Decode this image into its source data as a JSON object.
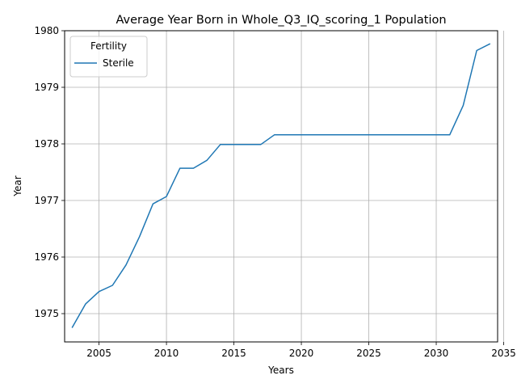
{
  "chart_data": {
    "type": "line",
    "title": "Average Year Born in Whole_Q3_IQ_scoring_1 Population",
    "xlabel": "Years",
    "ylabel": "Year",
    "xlim": [
      2002.45,
      2034.55
    ],
    "ylim": [
      1974.5,
      1980
    ],
    "xticks": [
      2005,
      2010,
      2015,
      2020,
      2025,
      2030,
      2035
    ],
    "yticks": [
      1975,
      1976,
      1977,
      1978,
      1979,
      1980
    ],
    "grid": true,
    "legend": {
      "title": "Fertility",
      "placement": "top-left"
    },
    "series": [
      {
        "name": "Sterile",
        "color": "#1f77b4",
        "x": [
          2003,
          2004,
          2005,
          2006,
          2007,
          2008,
          2009,
          2010,
          2011,
          2012,
          2013,
          2014,
          2015,
          2016,
          2017,
          2018,
          2019,
          2020,
          2021,
          2022,
          2023,
          2024,
          2025,
          2026,
          2027,
          2028,
          2029,
          2030,
          2031,
          2032,
          2033,
          2034
        ],
        "y": [
          1974.75,
          1975.17,
          1975.39,
          1975.5,
          1975.86,
          1976.36,
          1976.94,
          1977.07,
          1977.57,
          1977.57,
          1977.71,
          1977.99,
          1977.99,
          1977.99,
          1977.99,
          1978.16,
          1978.16,
          1978.16,
          1978.16,
          1978.16,
          1978.16,
          1978.16,
          1978.16,
          1978.16,
          1978.16,
          1978.16,
          1978.16,
          1978.16,
          1978.16,
          1978.68,
          1979.65,
          1979.77
        ]
      }
    ]
  }
}
